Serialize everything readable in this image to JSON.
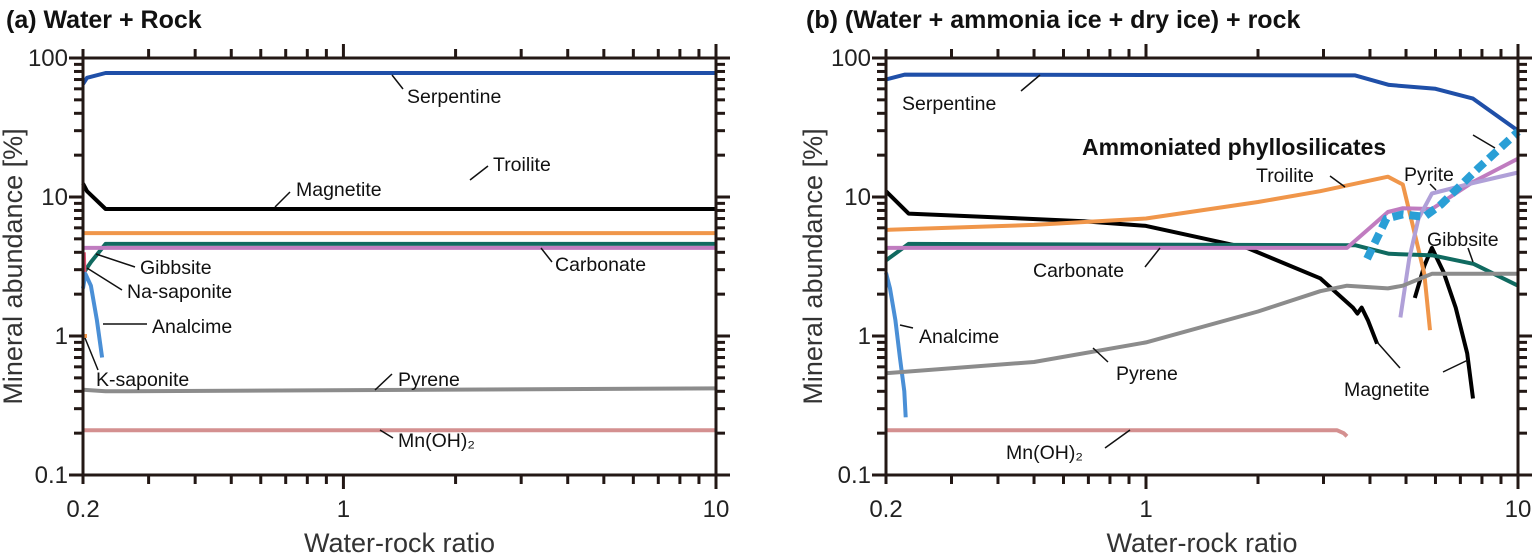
{
  "chart_data": [
    {
      "type": "line",
      "title": "(a) Water + Rock",
      "xlabel": "Water-rock ratio",
      "ylabel": "Mineral abundance [%]",
      "xscale": "log",
      "yscale": "log",
      "xlim": [
        0.2,
        10
      ],
      "ylim": [
        0.1,
        100
      ],
      "xticklabels": [
        {
          "value": 0.2,
          "label": "0.2"
        },
        {
          "value": 1,
          "label": "1"
        },
        {
          "value": 10,
          "label": "10"
        }
      ],
      "yticklabels": [
        {
          "value": 100,
          "label": "100"
        },
        {
          "value": 10,
          "label": "10"
        },
        {
          "value": 1,
          "label": "1"
        },
        {
          "value": 0.1,
          "label": "0.1"
        }
      ],
      "grid": false,
      "series": [
        {
          "name": "Serpentine",
          "color": "#1f4fa8",
          "segments": [
            [
              [
                0.2,
                65
              ],
              [
                0.205,
                72
              ],
              [
                0.23,
                78
              ],
              [
                10,
                78
              ]
            ]
          ]
        },
        {
          "name": "Magnetite",
          "color": "#000000",
          "segments": [
            [
              [
                0.2,
                12.5
              ],
              [
                0.205,
                11
              ],
              [
                0.23,
                8.2
              ],
              [
                10,
                8.2
              ]
            ]
          ]
        },
        {
          "name": "Troilite",
          "color": "#f0964a",
          "segments": [
            [
              [
                0.2,
                5.5
              ],
              [
                10,
                5.5
              ]
            ]
          ]
        },
        {
          "name": "Gibbsite",
          "color": "#106a60",
          "segments": [
            [
              [
                0.2,
                2.8
              ],
              [
                0.21,
                3.4
              ],
              [
                0.23,
                4.6
              ],
              [
                10,
                4.6
              ]
            ]
          ]
        },
        {
          "name": "Carbonate",
          "color": "#c07cc0",
          "segments": [
            [
              [
                0.2,
                4.3
              ],
              [
                10,
                4.3
              ]
            ]
          ]
        },
        {
          "name": "Na-saponite",
          "color": "#e05070",
          "segments": [
            [
              [
                0.201,
                4.0
              ],
              [
                0.202,
                2.6
              ]
            ]
          ]
        },
        {
          "name": "Analcime",
          "color": "#4a8fd6",
          "segments": [
            [
              [
                0.2,
                2.2
              ],
              [
                0.203,
                2.8
              ],
              [
                0.21,
                2.3
              ],
              [
                0.218,
                1.3
              ],
              [
                0.225,
                0.7
              ]
            ]
          ]
        },
        {
          "name": "K-saponite",
          "color": "#f0964a",
          "segments": [
            [
              [
                0.2,
                1.0
              ],
              [
                0.205,
                1.0
              ]
            ]
          ]
        },
        {
          "name": "Pyrene",
          "color": "#8c8c8c",
          "segments": [
            [
              [
                0.2,
                0.41
              ],
              [
                0.23,
                0.4
              ],
              [
                10,
                0.42
              ]
            ]
          ]
        },
        {
          "name": "Mn(OH)₂",
          "color": "#d49090",
          "segments": [
            [
              [
                0.2,
                0.21
              ],
              [
                10,
                0.21
              ]
            ]
          ]
        }
      ]
    },
    {
      "type": "line",
      "title": "(b) (Water + ammonia ice + dry ice) + rock",
      "xlabel": "Water-rock ratio",
      "ylabel": "Mineral abundance [%]",
      "xscale": "log",
      "yscale": "log",
      "xlim": [
        0.2,
        10
      ],
      "ylim": [
        0.1,
        100
      ],
      "xticklabels": [
        {
          "value": 0.2,
          "label": "0.2"
        },
        {
          "value": 1,
          "label": "1"
        },
        {
          "value": 10,
          "label": "10"
        }
      ],
      "yticklabels": [
        {
          "value": 100,
          "label": "100"
        },
        {
          "value": 10,
          "label": "10"
        },
        {
          "value": 1,
          "label": "1"
        },
        {
          "value": 0.1,
          "label": "0.1"
        }
      ],
      "grid": false,
      "series": [
        {
          "name": "Serpentine",
          "color": "#1f4fa8",
          "segments": [
            [
              [
                0.2,
                70
              ],
              [
                0.225,
                76
              ],
              [
                3.65,
                75
              ],
              [
                4.5,
                64
              ],
              [
                6.0,
                60
              ],
              [
                7.57,
                51
              ],
              [
                10,
                30
              ]
            ]
          ]
        },
        {
          "name": "Magnetite",
          "color": "#000000",
          "segments": [
            [
              [
                0.2,
                11
              ],
              [
                0.23,
                7.6
              ],
              [
                0.68,
                6.7
              ],
              [
                1.0,
                6.2
              ],
              [
                1.87,
                4.3
              ],
              [
                2.94,
                2.6
              ],
              [
                3.6,
                1.6
              ],
              [
                3.7,
                1.45
              ],
              [
                3.8,
                1.6
              ],
              [
                3.95,
                1.3
              ],
              [
                4.18,
                0.88
              ]
            ],
            [
              [
                5.28,
                1.88
              ],
              [
                5.6,
                3.2
              ],
              [
                5.87,
                4.3
              ],
              [
                6.3,
                2.9
              ],
              [
                6.8,
                1.6
              ],
              [
                7.3,
                0.75
              ],
              [
                7.57,
                0.355
              ]
            ]
          ]
        },
        {
          "name": "Troilite",
          "color": "#f0964a",
          "segments": [
            [
              [
                0.2,
                5.8
              ],
              [
                0.5,
                6.3
              ],
              [
                1.0,
                7.0
              ],
              [
                2.0,
                9.2
              ],
              [
                2.94,
                11
              ],
              [
                4.47,
                14
              ],
              [
                4.9,
                12.3
              ],
              [
                5.2,
                6.4
              ],
              [
                5.6,
                2.8
              ],
              [
                5.8,
                1.1
              ]
            ]
          ]
        },
        {
          "name": "Gibbsite",
          "color": "#106a60",
          "segments": [
            [
              [
                0.2,
                3.5
              ],
              [
                0.23,
                4.6
              ],
              [
                3.65,
                4.5
              ],
              [
                4.5,
                3.9
              ],
              [
                5.9,
                3.8
              ],
              [
                7.6,
                3.3
              ],
              [
                10,
                2.3
              ]
            ]
          ]
        },
        {
          "name": "Carbonate",
          "color": "#c07cc0",
          "segments": [
            [
              [
                0.2,
                4.3
              ],
              [
                3.47,
                4.3
              ],
              [
                4.0,
                6.0
              ],
              [
                4.47,
                7.8
              ],
              [
                4.9,
                8.3
              ],
              [
                5.87,
                8.2
              ],
              [
                7.6,
                12.9
              ],
              [
                10,
                18.9
              ]
            ]
          ]
        },
        {
          "name": "Pyrite",
          "color": "#b0a0d8",
          "segments": [
            [
              [
                4.83,
                1.36
              ],
              [
                5.1,
                3.6
              ],
              [
                5.4,
                7
              ],
              [
                5.87,
                10.6
              ],
              [
                7.57,
                12.6
              ],
              [
                10,
                15
              ]
            ]
          ]
        },
        {
          "name": "Ammoniated phyllosilicates",
          "color": "#2a9fd6",
          "dashed": true,
          "segments": [
            [
              [
                3.93,
                3.6
              ],
              [
                4.43,
                7
              ],
              [
                4.9,
                7.5
              ],
              [
                5.6,
                7.2
              ],
              [
                6.2,
                8.8
              ],
              [
                7.8,
                16
              ],
              [
                10,
                29.5
              ]
            ]
          ]
        },
        {
          "name": "Analcime",
          "color": "#4a8fd6",
          "segments": [
            [
              [
                0.2,
                2.85
              ],
              [
                0.205,
                2.2
              ],
              [
                0.212,
                1.3
              ],
              [
                0.218,
                0.7
              ],
              [
                0.224,
                0.4
              ],
              [
                0.226,
                0.26
              ]
            ]
          ]
        },
        {
          "name": "Pyrene",
          "color": "#8c8c8c",
          "segments": [
            [
              [
                0.2,
                0.54
              ],
              [
                0.5,
                0.65
              ],
              [
                1.0,
                0.9
              ],
              [
                2.0,
                1.5
              ],
              [
                2.94,
                2.1
              ],
              [
                3.47,
                2.3
              ],
              [
                4.47,
                2.2
              ],
              [
                4.9,
                2.3
              ],
              [
                5.87,
                2.8
              ],
              [
                10,
                2.8
              ]
            ]
          ]
        },
        {
          "name": "Mn(OH)₂",
          "color": "#d49090",
          "segments": [
            [
              [
                0.2,
                0.21
              ],
              [
                3.26,
                0.21
              ],
              [
                3.4,
                0.2
              ],
              [
                3.47,
                0.19
              ]
            ]
          ]
        }
      ]
    }
  ]
}
